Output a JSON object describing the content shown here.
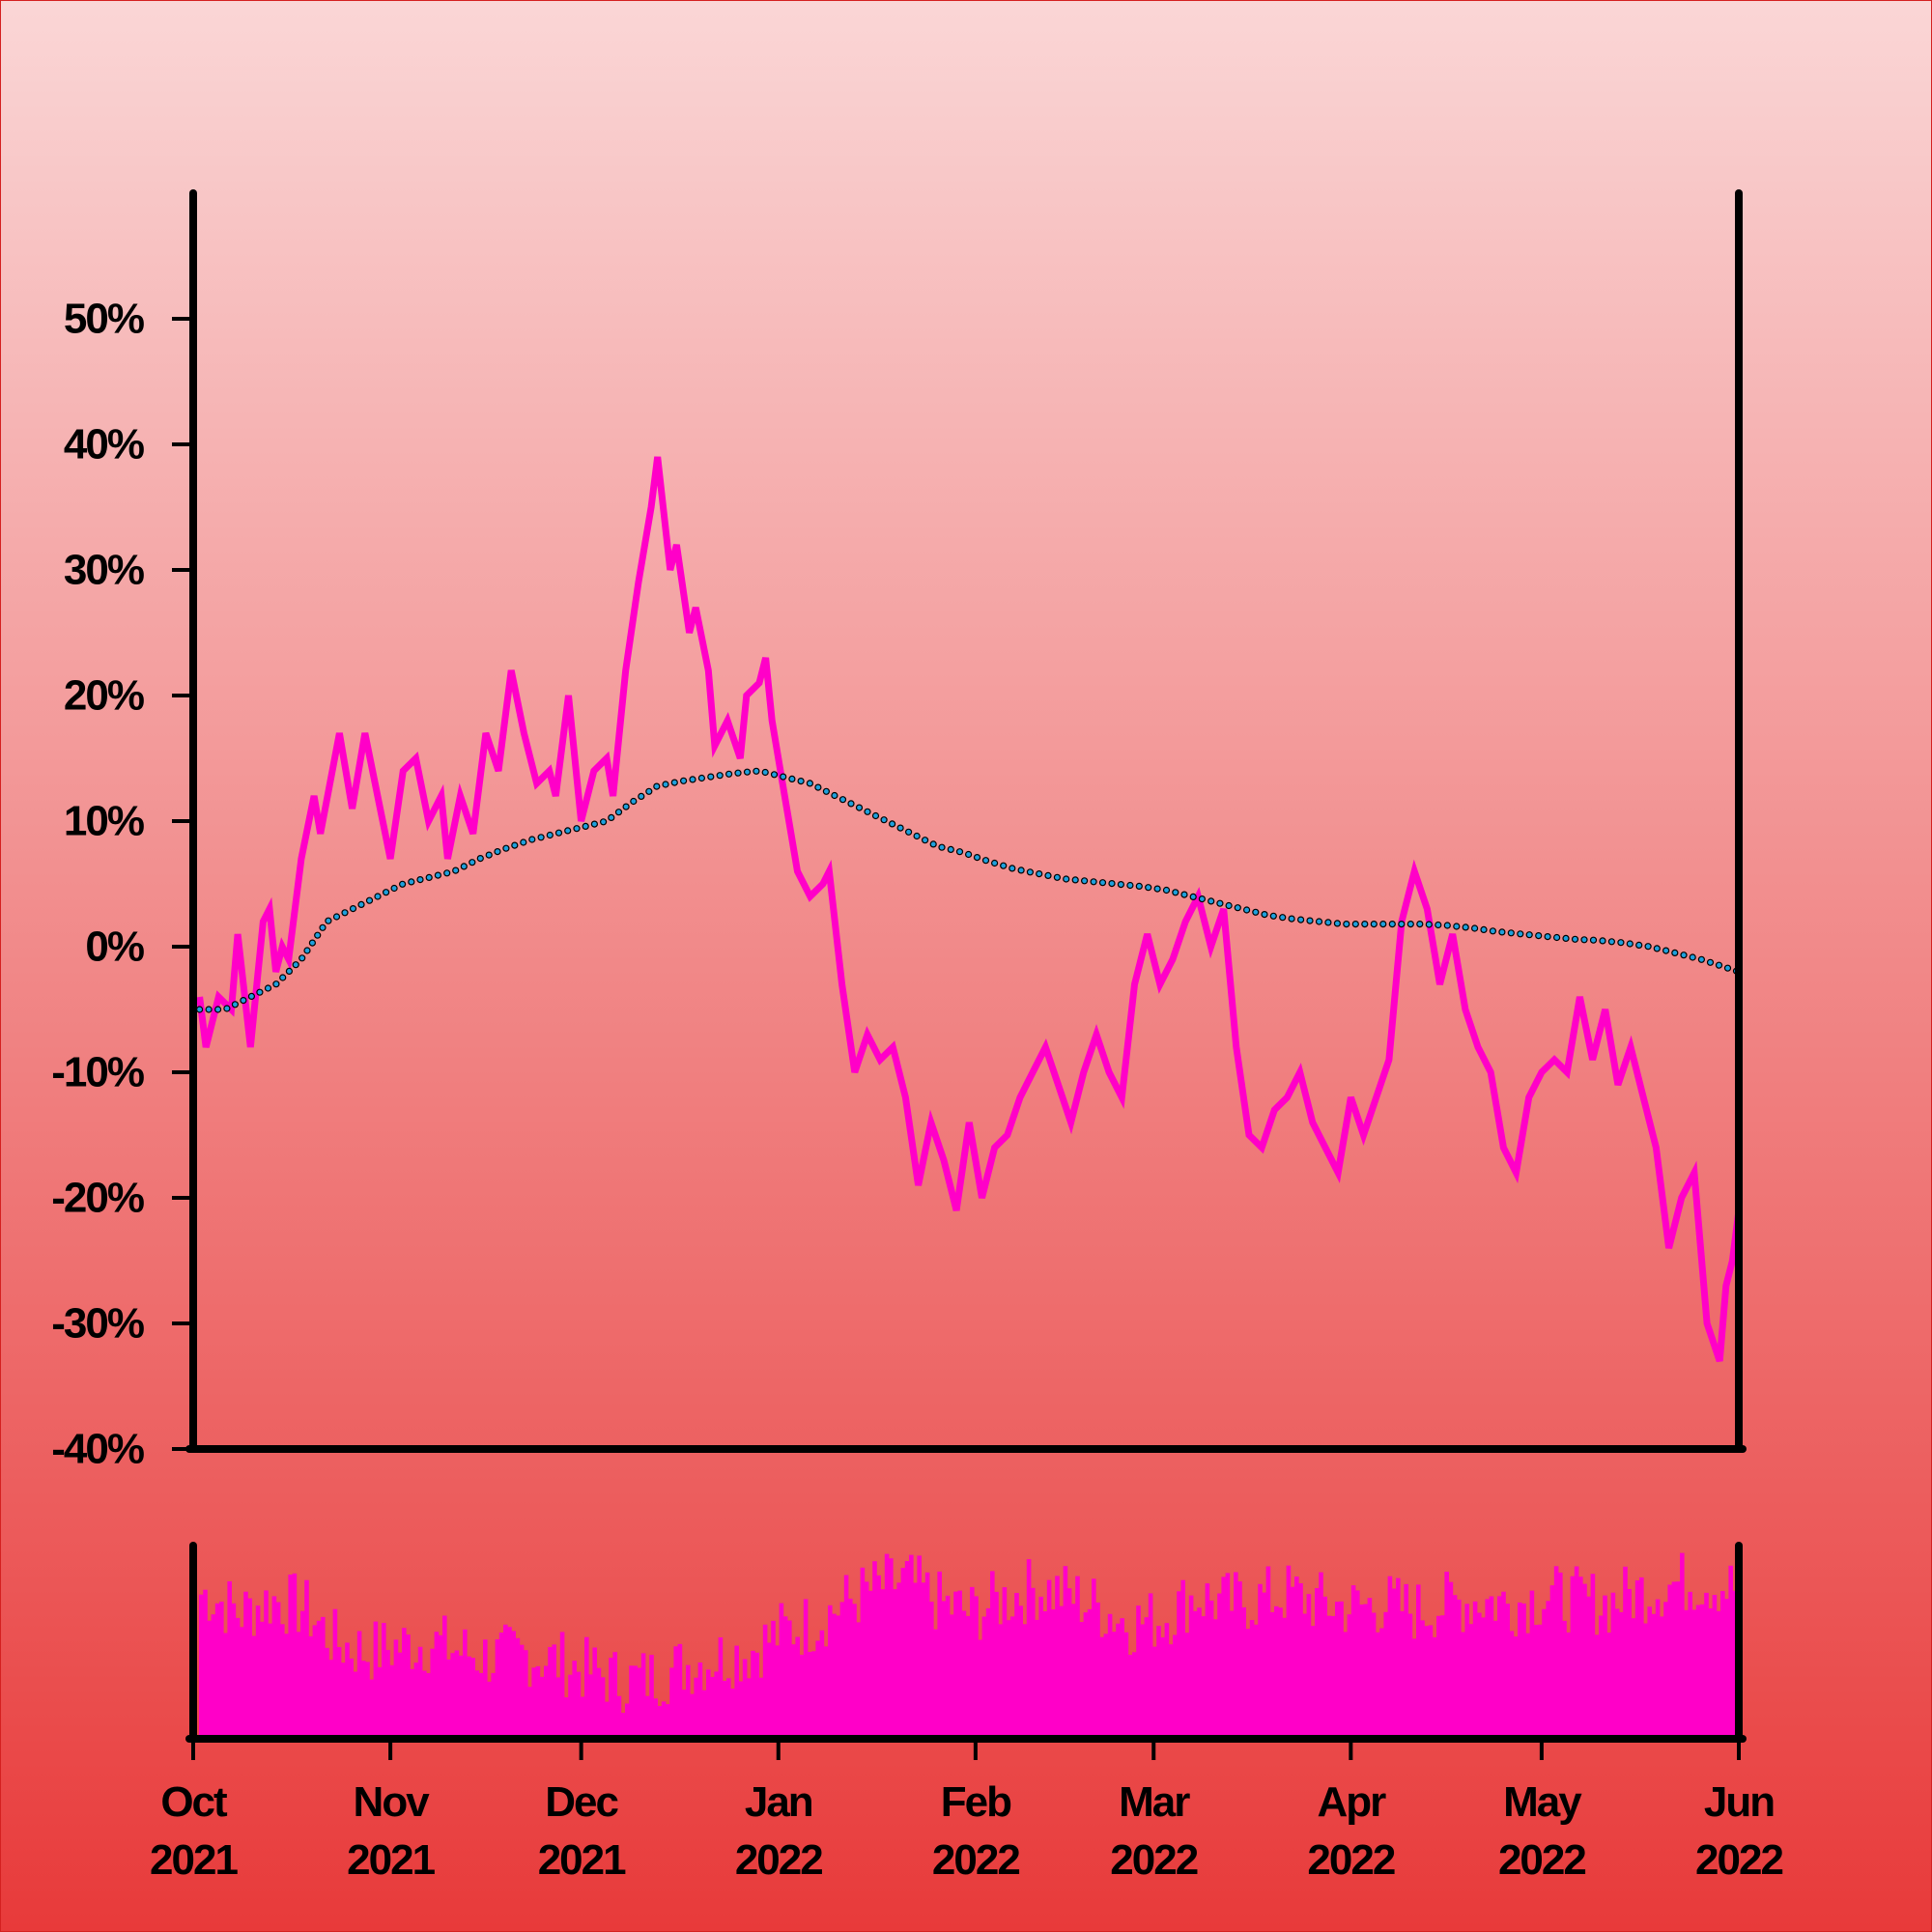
{
  "chart_data": {
    "type": "line",
    "x_start": "2021-10-01",
    "x_end": "2022-06-01",
    "ylim": [
      -40,
      60
    ],
    "y_ticks": [
      -40,
      -30,
      -20,
      -10,
      0,
      10,
      20,
      30,
      40,
      50
    ],
    "y_tick_labels": [
      "-40%",
      "-30%",
      "-20%",
      "-10%",
      "0%",
      "10%",
      "20%",
      "30%",
      "40%",
      "50%"
    ],
    "x_ticks": [
      {
        "date": "2021-10-01",
        "month": "Oct",
        "year": "2021"
      },
      {
        "date": "2021-11-01",
        "month": "Nov",
        "year": "2021"
      },
      {
        "date": "2021-12-01",
        "month": "Dec",
        "year": "2021"
      },
      {
        "date": "2022-01-01",
        "month": "Jan",
        "year": "2022"
      },
      {
        "date": "2022-02-01",
        "month": "Feb",
        "year": "2022"
      },
      {
        "date": "2022-03-01",
        "month": "Mar",
        "year": "2022"
      },
      {
        "date": "2022-04-01",
        "month": "Apr",
        "year": "2022"
      },
      {
        "date": "2022-05-01",
        "month": "May",
        "year": "2022"
      },
      {
        "date": "2022-06-01",
        "month": "Jun",
        "year": "2022"
      }
    ],
    "grid": false,
    "series": [
      {
        "role": "price",
        "color": "#ff00c8",
        "points": [
          [
            "2021-10-02",
            -4
          ],
          [
            "2021-10-03",
            -8
          ],
          [
            "2021-10-05",
            -4
          ],
          [
            "2021-10-07",
            -5
          ],
          [
            "2021-10-08",
            1
          ],
          [
            "2021-10-10",
            -8
          ],
          [
            "2021-10-12",
            2
          ],
          [
            "2021-10-13",
            3
          ],
          [
            "2021-10-14",
            -2
          ],
          [
            "2021-10-15",
            0
          ],
          [
            "2021-10-16",
            -1
          ],
          [
            "2021-10-18",
            7
          ],
          [
            "2021-10-20",
            12
          ],
          [
            "2021-10-21",
            9
          ],
          [
            "2021-10-24",
            17
          ],
          [
            "2021-10-26",
            11
          ],
          [
            "2021-10-28",
            17
          ],
          [
            "2021-10-30",
            12
          ],
          [
            "2021-11-01",
            7
          ],
          [
            "2021-11-03",
            14
          ],
          [
            "2021-11-05",
            15
          ],
          [
            "2021-11-07",
            10
          ],
          [
            "2021-11-09",
            12
          ],
          [
            "2021-11-10",
            7
          ],
          [
            "2021-11-12",
            12
          ],
          [
            "2021-11-14",
            9
          ],
          [
            "2021-11-16",
            17
          ],
          [
            "2021-11-18",
            14
          ],
          [
            "2021-11-20",
            22
          ],
          [
            "2021-11-22",
            17
          ],
          [
            "2021-11-24",
            13
          ],
          [
            "2021-11-26",
            14
          ],
          [
            "2021-11-27",
            12
          ],
          [
            "2021-11-29",
            20
          ],
          [
            "2021-12-01",
            10
          ],
          [
            "2021-12-03",
            14
          ],
          [
            "2021-12-05",
            15
          ],
          [
            "2021-12-06",
            12
          ],
          [
            "2021-12-08",
            22
          ],
          [
            "2021-12-10",
            29
          ],
          [
            "2021-12-12",
            35
          ],
          [
            "2021-12-13",
            39
          ],
          [
            "2021-12-15",
            30
          ],
          [
            "2021-12-16",
            32
          ],
          [
            "2021-12-18",
            25
          ],
          [
            "2021-12-19",
            27
          ],
          [
            "2021-12-21",
            22
          ],
          [
            "2021-12-22",
            16
          ],
          [
            "2021-12-24",
            18
          ],
          [
            "2021-12-26",
            15
          ],
          [
            "2021-12-27",
            20
          ],
          [
            "2021-12-29",
            21
          ],
          [
            "2021-12-30",
            23
          ],
          [
            "2021-12-31",
            18
          ],
          [
            "2022-01-02",
            12
          ],
          [
            "2022-01-04",
            6
          ],
          [
            "2022-01-06",
            4
          ],
          [
            "2022-01-08",
            5
          ],
          [
            "2022-01-09",
            6
          ],
          [
            "2022-01-11",
            -3
          ],
          [
            "2022-01-13",
            -10
          ],
          [
            "2022-01-15",
            -7
          ],
          [
            "2022-01-17",
            -9
          ],
          [
            "2022-01-19",
            -8
          ],
          [
            "2022-01-21",
            -12
          ],
          [
            "2022-01-23",
            -19
          ],
          [
            "2022-01-25",
            -14
          ],
          [
            "2022-01-27",
            -17
          ],
          [
            "2022-01-29",
            -21
          ],
          [
            "2022-01-31",
            -14
          ],
          [
            "2022-02-02",
            -20
          ],
          [
            "2022-02-04",
            -16
          ],
          [
            "2022-02-06",
            -15
          ],
          [
            "2022-02-08",
            -12
          ],
          [
            "2022-02-10",
            -10
          ],
          [
            "2022-02-12",
            -8
          ],
          [
            "2022-02-14",
            -11
          ],
          [
            "2022-02-16",
            -14
          ],
          [
            "2022-02-18",
            -10
          ],
          [
            "2022-02-20",
            -7
          ],
          [
            "2022-02-22",
            -10
          ],
          [
            "2022-02-24",
            -12
          ],
          [
            "2022-02-26",
            -3
          ],
          [
            "2022-02-28",
            1
          ],
          [
            "2022-03-02",
            -3
          ],
          [
            "2022-03-04",
            -1
          ],
          [
            "2022-03-06",
            2
          ],
          [
            "2022-03-08",
            4
          ],
          [
            "2022-03-10",
            0
          ],
          [
            "2022-03-12",
            3
          ],
          [
            "2022-03-14",
            -8
          ],
          [
            "2022-03-16",
            -15
          ],
          [
            "2022-03-18",
            -16
          ],
          [
            "2022-03-20",
            -13
          ],
          [
            "2022-03-22",
            -12
          ],
          [
            "2022-03-24",
            -10
          ],
          [
            "2022-03-26",
            -14
          ],
          [
            "2022-03-28",
            -16
          ],
          [
            "2022-03-30",
            -18
          ],
          [
            "2022-04-01",
            -12
          ],
          [
            "2022-04-03",
            -15
          ],
          [
            "2022-04-05",
            -12
          ],
          [
            "2022-04-07",
            -9
          ],
          [
            "2022-04-09",
            2
          ],
          [
            "2022-04-11",
            6
          ],
          [
            "2022-04-13",
            3
          ],
          [
            "2022-04-15",
            -3
          ],
          [
            "2022-04-17",
            1
          ],
          [
            "2022-04-19",
            -5
          ],
          [
            "2022-04-21",
            -8
          ],
          [
            "2022-04-23",
            -10
          ],
          [
            "2022-04-25",
            -16
          ],
          [
            "2022-04-27",
            -18
          ],
          [
            "2022-04-29",
            -12
          ],
          [
            "2022-05-01",
            -10
          ],
          [
            "2022-05-03",
            -9
          ],
          [
            "2022-05-05",
            -10
          ],
          [
            "2022-05-07",
            -4
          ],
          [
            "2022-05-09",
            -9
          ],
          [
            "2022-05-11",
            -5
          ],
          [
            "2022-05-13",
            -11
          ],
          [
            "2022-05-15",
            -8
          ],
          [
            "2022-05-17",
            -12
          ],
          [
            "2022-05-19",
            -16
          ],
          [
            "2022-05-21",
            -24
          ],
          [
            "2022-05-23",
            -20
          ],
          [
            "2022-05-25",
            -18
          ],
          [
            "2022-05-27",
            -30
          ],
          [
            "2022-05-29",
            -33
          ],
          [
            "2022-05-30",
            -27
          ],
          [
            "2022-05-31",
            -25
          ],
          [
            "2022-06-01",
            -21
          ]
        ]
      },
      {
        "role": "moving-average",
        "color": "#1ea0dc",
        "style": "dotted",
        "points": [
          [
            "2021-10-02",
            -5
          ],
          [
            "2021-10-06",
            -5
          ],
          [
            "2021-10-10",
            -4
          ],
          [
            "2021-10-14",
            -3
          ],
          [
            "2021-10-18",
            -1
          ],
          [
            "2021-10-22",
            2
          ],
          [
            "2021-10-26",
            3
          ],
          [
            "2021-10-30",
            4
          ],
          [
            "2021-11-03",
            5
          ],
          [
            "2021-11-07",
            5.5
          ],
          [
            "2021-11-11",
            6
          ],
          [
            "2021-11-15",
            7
          ],
          [
            "2021-11-19",
            7.8
          ],
          [
            "2021-11-23",
            8.5
          ],
          [
            "2021-11-27",
            9
          ],
          [
            "2021-12-01",
            9.5
          ],
          [
            "2021-12-05",
            10
          ],
          [
            "2021-12-09",
            11.5
          ],
          [
            "2021-12-13",
            12.8
          ],
          [
            "2021-12-17",
            13.2
          ],
          [
            "2021-12-21",
            13.5
          ],
          [
            "2021-12-25",
            13.8
          ],
          [
            "2021-12-29",
            14
          ],
          [
            "2022-01-02",
            13.5
          ],
          [
            "2022-01-06",
            13
          ],
          [
            "2022-01-10",
            12
          ],
          [
            "2022-01-14",
            11
          ],
          [
            "2022-01-18",
            10
          ],
          [
            "2022-01-22",
            9
          ],
          [
            "2022-01-26",
            8
          ],
          [
            "2022-01-30",
            7.5
          ],
          [
            "2022-02-03",
            6.8
          ],
          [
            "2022-02-07",
            6.2
          ],
          [
            "2022-02-11",
            5.8
          ],
          [
            "2022-02-15",
            5.4
          ],
          [
            "2022-02-19",
            5.2
          ],
          [
            "2022-02-23",
            5
          ],
          [
            "2022-02-27",
            4.8
          ],
          [
            "2022-03-03",
            4.5
          ],
          [
            "2022-03-07",
            4
          ],
          [
            "2022-03-11",
            3.5
          ],
          [
            "2022-03-15",
            3
          ],
          [
            "2022-03-19",
            2.5
          ],
          [
            "2022-03-23",
            2.2
          ],
          [
            "2022-03-27",
            2
          ],
          [
            "2022-03-31",
            1.8
          ],
          [
            "2022-04-04",
            1.8
          ],
          [
            "2022-04-08",
            1.8
          ],
          [
            "2022-04-12",
            1.8
          ],
          [
            "2022-04-16",
            1.7
          ],
          [
            "2022-04-20",
            1.5
          ],
          [
            "2022-04-24",
            1.2
          ],
          [
            "2022-04-28",
            1
          ],
          [
            "2022-05-02",
            0.8
          ],
          [
            "2022-05-06",
            0.6
          ],
          [
            "2022-05-10",
            0.5
          ],
          [
            "2022-05-14",
            0.3
          ],
          [
            "2022-05-18",
            0
          ],
          [
            "2022-05-22",
            -0.5
          ],
          [
            "2022-05-26",
            -1
          ],
          [
            "2022-06-01",
            -2
          ]
        ]
      }
    ],
    "volume": {
      "color": "#ff00c8",
      "unit": "relative",
      "points": [
        [
          "2021-10-03",
          0.75
        ],
        [
          "2021-10-08",
          0.65
        ],
        [
          "2021-10-13",
          0.72
        ],
        [
          "2021-10-18",
          0.68
        ],
        [
          "2021-10-23",
          0.5
        ],
        [
          "2021-10-28",
          0.45
        ],
        [
          "2021-11-02",
          0.48
        ],
        [
          "2021-11-07",
          0.5
        ],
        [
          "2021-11-12",
          0.45
        ],
        [
          "2021-11-17",
          0.42
        ],
        [
          "2021-11-22",
          0.44
        ],
        [
          "2021-11-27",
          0.4
        ],
        [
          "2021-12-02",
          0.35
        ],
        [
          "2021-12-07",
          0.3
        ],
        [
          "2021-12-12",
          0.32
        ],
        [
          "2021-12-17",
          0.38
        ],
        [
          "2021-12-22",
          0.42
        ],
        [
          "2021-12-27",
          0.45
        ],
        [
          "2022-01-01",
          0.55
        ],
        [
          "2022-01-06",
          0.6
        ],
        [
          "2022-01-11",
          0.7
        ],
        [
          "2022-01-16",
          0.78
        ],
        [
          "2022-01-21",
          0.82
        ],
        [
          "2022-01-26",
          0.7
        ],
        [
          "2022-01-31",
          0.65
        ],
        [
          "2022-02-05",
          0.72
        ],
        [
          "2022-02-10",
          0.78
        ],
        [
          "2022-02-15",
          0.75
        ],
        [
          "2022-02-20",
          0.68
        ],
        [
          "2022-02-25",
          0.6
        ],
        [
          "2022-03-02",
          0.62
        ],
        [
          "2022-03-07",
          0.74
        ],
        [
          "2022-03-12",
          0.7
        ],
        [
          "2022-03-17",
          0.72
        ],
        [
          "2022-03-22",
          0.75
        ],
        [
          "2022-03-27",
          0.7
        ],
        [
          "2022-04-01",
          0.68
        ],
        [
          "2022-04-06",
          0.7
        ],
        [
          "2022-04-11",
          0.66
        ],
        [
          "2022-04-16",
          0.7
        ],
        [
          "2022-04-21",
          0.72
        ],
        [
          "2022-04-26",
          0.7
        ],
        [
          "2022-05-01",
          0.74
        ],
        [
          "2022-05-06",
          0.72
        ],
        [
          "2022-05-11",
          0.7
        ],
        [
          "2022-05-16",
          0.76
        ],
        [
          "2022-05-21",
          0.8
        ],
        [
          "2022-05-26",
          0.82
        ],
        [
          "2022-05-31",
          0.78
        ]
      ]
    }
  },
  "colors": {
    "background_top": "#fad6d6",
    "background_bottom": "#e83a3a",
    "axis": "#000000",
    "price_line": "#ff00c8",
    "moving_average": "#1ea0dc",
    "volume_bars": "#ff00c8"
  }
}
